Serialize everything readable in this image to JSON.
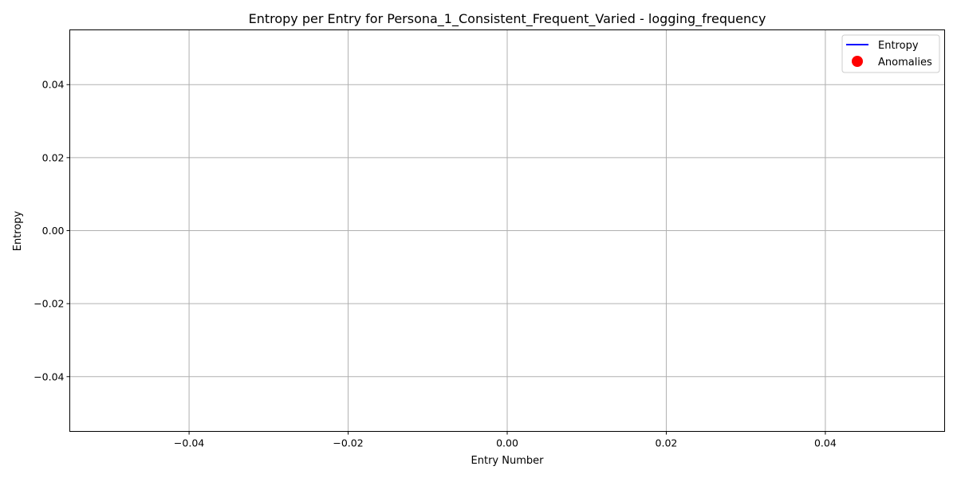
{
  "chart_data": {
    "type": "line",
    "title": "Entropy per Entry for Persona_1_Consistent_Frequent_Varied - logging_frequency",
    "xlabel": "Entry Number",
    "ylabel": "Entropy",
    "xlim": [
      -0.055,
      0.055
    ],
    "ylim": [
      -0.055,
      0.055
    ],
    "xticks": [
      -0.04,
      -0.02,
      0.0,
      0.02,
      0.04
    ],
    "yticks": [
      -0.04,
      -0.02,
      0.0,
      0.02,
      0.04
    ],
    "xtick_labels": [
      "−0.04",
      "−0.02",
      "0.00",
      "0.02",
      "0.04"
    ],
    "ytick_labels": [
      "−0.04",
      "−0.02",
      "0.00",
      "0.02",
      "0.04"
    ],
    "grid": true,
    "legend_position": "top-right",
    "series": [
      {
        "name": "Entropy",
        "kind": "line",
        "color": "#0000ff",
        "x": [],
        "y": []
      },
      {
        "name": "Anomalies",
        "kind": "scatter",
        "color": "#ff0000",
        "x": [],
        "y": []
      }
    ]
  }
}
